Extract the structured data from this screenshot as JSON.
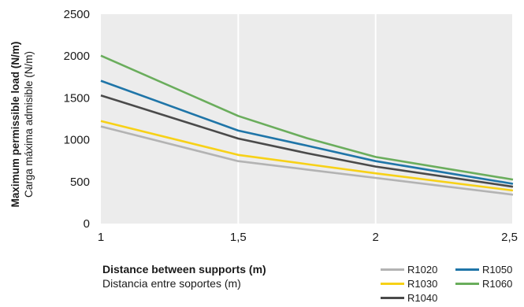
{
  "chart_data": {
    "type": "line",
    "title": "",
    "xlabel": [
      "Distance between supports (m)",
      "Distancia entre soportes (m)"
    ],
    "ylabel": [
      "Maximum permissible load (N/m)",
      "Carga máxima admisible (N/m)"
    ],
    "x": [
      1,
      1.5,
      1.75,
      2,
      2.5
    ],
    "x_ticks": [
      "1",
      "1,5",
      "2",
      "2,5"
    ],
    "x_tick_values": [
      1,
      1.5,
      2,
      2.5
    ],
    "y_ticks": [
      "0",
      "500",
      "1000",
      "1500",
      "2000",
      "2500"
    ],
    "y_tick_values": [
      0,
      500,
      1000,
      1500,
      2000,
      2500
    ],
    "xlim": [
      1,
      2.5
    ],
    "ylim": [
      0,
      2500
    ],
    "grid": "vertical",
    "legend_position": "bottom-right",
    "series": [
      {
        "name": "R1020",
        "color": "#b3b3b3",
        "values": [
          1160,
          745,
          645,
          545,
          345
        ]
      },
      {
        "name": "R1030",
        "color": "#f7d117",
        "values": [
          1225,
          820,
          710,
          600,
          395
        ]
      },
      {
        "name": "R1040",
        "color": "#4a4a4a",
        "values": [
          1530,
          1015,
          840,
          680,
          440
        ]
      },
      {
        "name": "R1050",
        "color": "#1f75a8",
        "values": [
          1705,
          1110,
          930,
          745,
          475
        ]
      },
      {
        "name": "R1060",
        "color": "#6aad5c",
        "values": [
          2005,
          1285,
          1020,
          795,
          525
        ]
      }
    ]
  }
}
